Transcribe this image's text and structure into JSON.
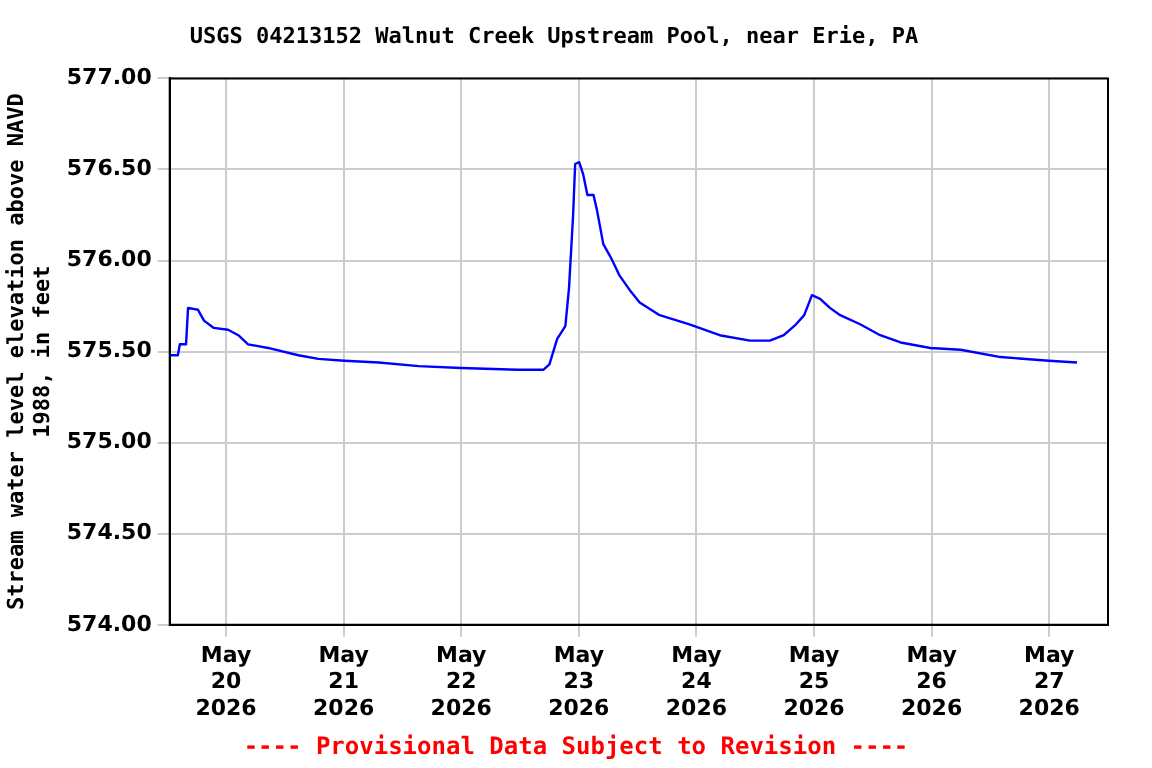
{
  "chart_data": {
    "type": "line",
    "title": "USGS 04213152 Walnut Creek Upstream Pool, near Erie, PA",
    "ylabel": "Stream water level elevation above NAVD 1988, in feet",
    "annotations": [
      "---- Provisional Data Subject to Revision ----"
    ],
    "x": [
      "2026-05-19T12:30",
      "2026-05-19T14:10",
      "2026-05-19T14:35",
      "2026-05-19T15:50",
      "2026-05-19T16:15",
      "2026-05-19T18:15",
      "2026-05-19T19:30",
      "2026-05-19T21:30",
      "2026-05-20T00:25",
      "2026-05-20T02:30",
      "2026-05-20T04:30",
      "2026-05-20T08:35",
      "2026-05-20T14:45",
      "2026-05-20T18:50",
      "2026-05-21T00:10",
      "2026-05-21T07:10",
      "2026-05-21T15:20",
      "2026-05-21T23:55",
      "2026-05-22T11:50",
      "2026-05-22T16:45",
      "2026-05-22T18:00",
      "2026-05-22T19:35",
      "2026-05-22T21:15",
      "2026-05-22T22:00",
      "2026-05-22T22:50",
      "2026-05-22T23:15",
      "2026-05-23T00:05",
      "2026-05-23T00:55",
      "2026-05-23T01:45",
      "2026-05-23T03:00",
      "2026-05-23T03:45",
      "2026-05-23T05:00",
      "2026-05-23T06:40",
      "2026-05-23T08:15",
      "2026-05-23T10:20",
      "2026-05-23T12:25",
      "2026-05-23T16:30",
      "2026-05-23T22:35",
      "2026-05-24T04:45",
      "2026-05-24T10:55",
      "2026-05-24T15:00",
      "2026-05-24T17:50",
      "2026-05-24T20:20",
      "2026-05-24T22:00",
      "2026-05-24T23:35",
      "2026-05-25T01:15",
      "2026-05-25T03:15",
      "2026-05-25T05:20",
      "2026-05-25T09:25",
      "2026-05-25T13:30",
      "2026-05-25T17:40",
      "2026-05-25T23:45",
      "2026-05-26T05:55",
      "2026-05-26T14:05",
      "2026-05-26T23:55",
      "2026-05-27T05:40"
    ],
    "series": [
      {
        "color": "#0000ff",
        "values": [
          575.48,
          575.48,
          575.54,
          575.54,
          575.74,
          575.73,
          575.67,
          575.63,
          575.62,
          575.59,
          575.54,
          575.52,
          575.48,
          575.46,
          575.45,
          575.44,
          575.42,
          575.41,
          575.4,
          575.4,
          575.43,
          575.57,
          575.64,
          575.85,
          576.25,
          576.53,
          576.54,
          576.47,
          576.36,
          576.36,
          576.27,
          576.09,
          576.01,
          575.92,
          575.84,
          575.77,
          575.7,
          575.65,
          575.59,
          575.56,
          575.56,
          575.59,
          575.65,
          575.7,
          575.81,
          575.79,
          575.74,
          575.7,
          575.65,
          575.59,
          575.55,
          575.52,
          575.51,
          575.47,
          575.45,
          575.44
        ]
      }
    ],
    "xlim": [
      "2026-05-19T12:30",
      "2026-05-27T12:00"
    ],
    "xticks": [
      {
        "value": "2026-05-20",
        "label": "May\n20\n2026"
      },
      {
        "value": "2026-05-21",
        "label": "May\n21\n2026"
      },
      {
        "value": "2026-05-22",
        "label": "May\n22\n2026"
      },
      {
        "value": "2026-05-23",
        "label": "May\n23\n2026"
      },
      {
        "value": "2026-05-24",
        "label": "May\n24\n2026"
      },
      {
        "value": "2026-05-25",
        "label": "May\n25\n2026"
      },
      {
        "value": "2026-05-26",
        "label": "May\n26\n2026"
      },
      {
        "value": "2026-05-27",
        "label": "May\n27\n2026"
      }
    ],
    "ylim": [
      574,
      577
    ],
    "yticks": [
      {
        "value": 574,
        "label": "574.00"
      },
      {
        "value": 574.5,
        "label": "574.50"
      },
      {
        "value": 575,
        "label": "575.00"
      },
      {
        "value": 575.5,
        "label": "575.50"
      },
      {
        "value": 576,
        "label": "576.00"
      },
      {
        "value": 576.5,
        "label": "576.50"
      },
      {
        "value": 577,
        "label": "577.00"
      }
    ],
    "grid": true,
    "legend": false,
    "marker": "none",
    "line_style": "solid"
  }
}
